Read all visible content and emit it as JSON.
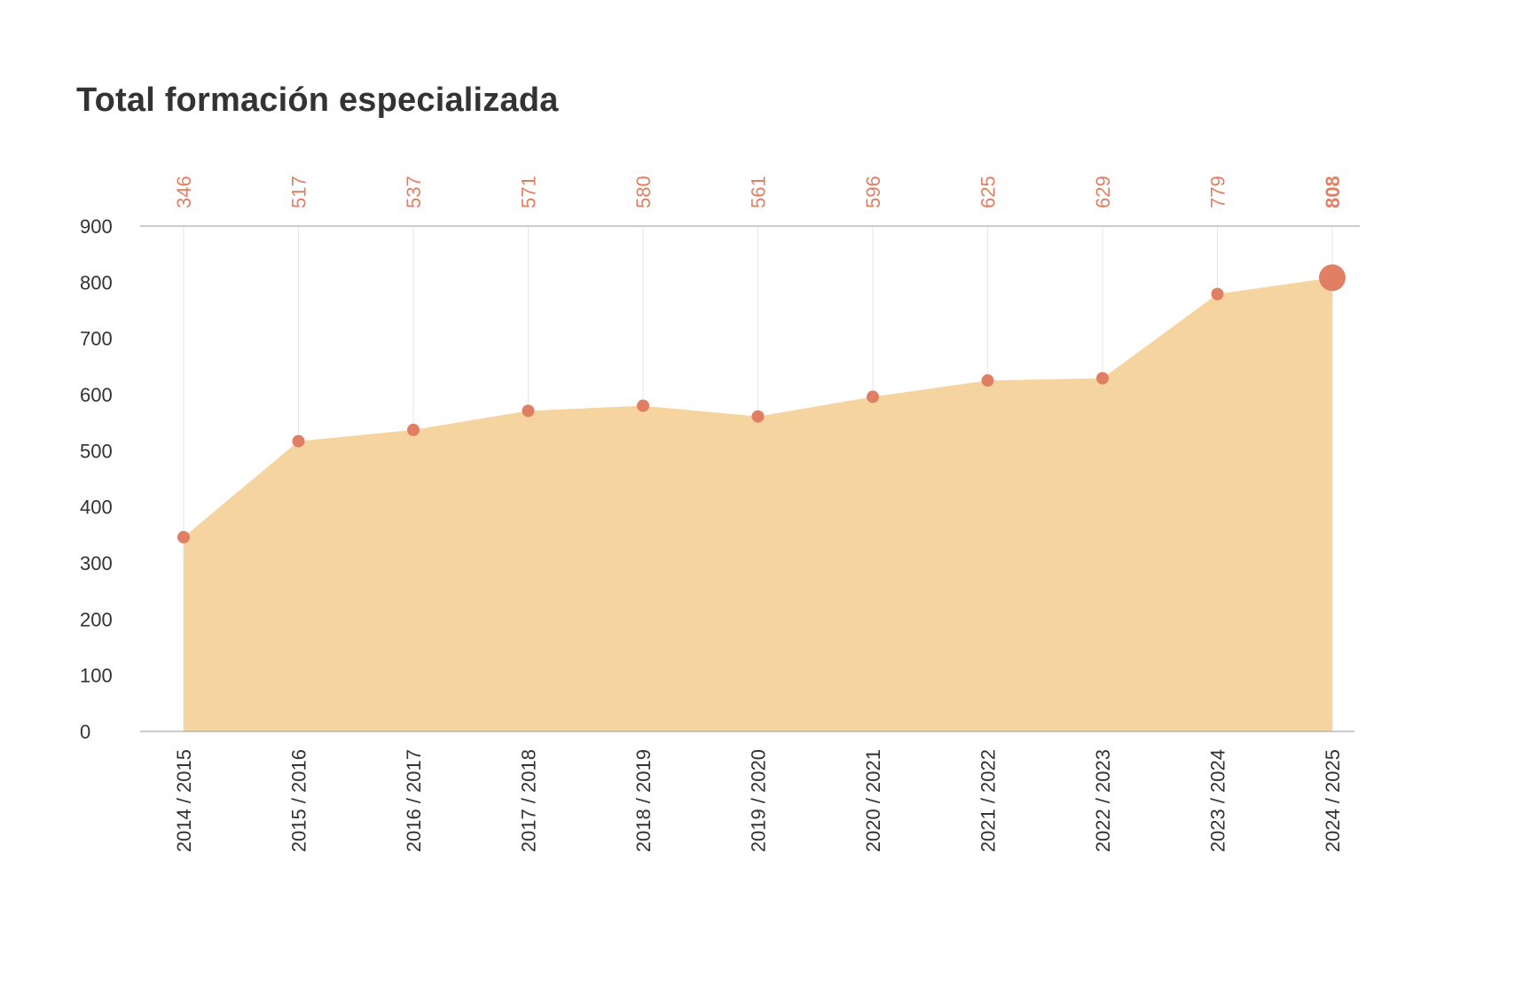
{
  "page": {
    "title": "Total formación especializada"
  },
  "colors": {
    "area": "#f5cf96",
    "point": "#e07f63",
    "label": "#e07f63",
    "axis": "#999999",
    "grid": "#e6e6e6",
    "text": "#333333"
  },
  "chart_data": {
    "type": "area",
    "title": "Total formación especializada",
    "xlabel": "",
    "ylabel": "",
    "categories": [
      "2014 / 2015",
      "2015 / 2016",
      "2016 / 2017",
      "2017 / 2018",
      "2018 / 2019",
      "2019 / 2020",
      "2020 / 2021",
      "2021 / 2022",
      "2022 / 2023",
      "2023 / 2024",
      "2024 / 2025"
    ],
    "values": [
      346,
      517,
      537,
      571,
      580,
      561,
      596,
      625,
      629,
      779,
      808
    ],
    "value_labels": [
      "346",
      "517",
      "537",
      "571",
      "580",
      "561",
      "596",
      "625",
      "629",
      "779",
      "808"
    ],
    "ylim": [
      0,
      900
    ],
    "yticks": [
      0,
      100,
      200,
      300,
      400,
      500,
      600,
      700,
      800,
      900
    ],
    "ytick_labels": [
      "0",
      "100",
      "200",
      "300",
      "400",
      "500",
      "600",
      "700",
      "800",
      "900"
    ],
    "highlight_last": true,
    "grid": "vertical"
  }
}
